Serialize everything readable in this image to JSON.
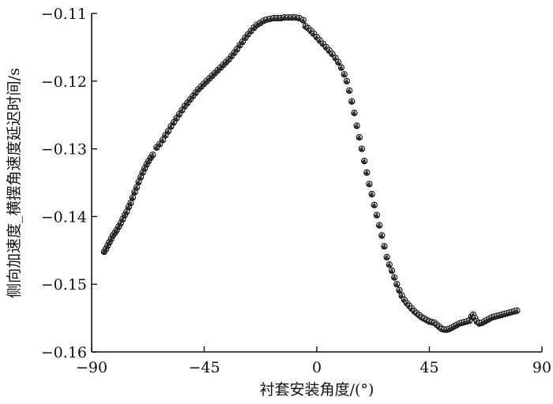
{
  "chart_data": {
    "type": "scatter",
    "xlabel": "衬套安装角度/(°)",
    "ylabel": "侧向加速度_横摆角速度延迟时间/s",
    "xlim": [
      -90,
      90
    ],
    "ylim": [
      -0.16,
      -0.11
    ],
    "xticks": [
      -90,
      -45,
      0,
      45,
      90
    ],
    "yticks": [
      -0.16,
      -0.15,
      -0.14,
      -0.13,
      -0.12,
      -0.11
    ],
    "xtick_labels": [
      "−90",
      "−45",
      "0",
      "45",
      "90"
    ],
    "ytick_labels": [
      "−0.16",
      "−0.15",
      "−0.14",
      "−0.13",
      "−0.12",
      "−0.11"
    ],
    "grid": false,
    "series": [
      {
        "marker_color": "#111111",
        "points": [
          [
            -85.0,
            -0.1452
          ],
          [
            -84.3,
            -0.1448
          ],
          [
            -83.6,
            -0.1443
          ],
          [
            -82.9,
            -0.1438
          ],
          [
            -82.2,
            -0.1433
          ],
          [
            -81.5,
            -0.1428
          ],
          [
            -80.7,
            -0.1424
          ],
          [
            -80.0,
            -0.142
          ],
          [
            -79.2,
            -0.1415
          ],
          [
            -78.4,
            -0.141
          ],
          [
            -77.6,
            -0.1404
          ],
          [
            -76.8,
            -0.1398
          ],
          [
            -76.0,
            -0.1393
          ],
          [
            -75.2,
            -0.1386
          ],
          [
            -74.4,
            -0.138
          ],
          [
            -73.6,
            -0.1372
          ],
          [
            -72.8,
            -0.1364
          ],
          [
            -72.0,
            -0.1357
          ],
          [
            -71.2,
            -0.1349
          ],
          [
            -70.4,
            -0.1342
          ],
          [
            -69.6,
            -0.1335
          ],
          [
            -68.8,
            -0.1329
          ],
          [
            -68.0,
            -0.1323
          ],
          [
            -67.2,
            -0.1318
          ],
          [
            -66.4,
            -0.1313
          ],
          [
            -65.6,
            -0.1309
          ],
          [
            -64.0,
            -0.1298
          ],
          [
            -62.8,
            -0.1293
          ],
          [
            -61.6,
            -0.1287
          ],
          [
            -60.5,
            -0.128
          ],
          [
            -59.4,
            -0.1274
          ],
          [
            -58.3,
            -0.1267
          ],
          [
            -57.2,
            -0.1261
          ],
          [
            -56.1,
            -0.1255
          ],
          [
            -55.0,
            -0.1249
          ],
          [
            -53.9,
            -0.1243
          ],
          [
            -52.8,
            -0.1237
          ],
          [
            -51.7,
            -0.1232
          ],
          [
            -50.6,
            -0.1227
          ],
          [
            -49.5,
            -0.1222
          ],
          [
            -48.4,
            -0.1217
          ],
          [
            -47.3,
            -0.1212
          ],
          [
            -46.2,
            -0.1208
          ],
          [
            -45.1,
            -0.1204
          ],
          [
            -44.0,
            -0.12
          ],
          [
            -42.9,
            -0.1196
          ],
          [
            -41.8,
            -0.1192
          ],
          [
            -40.7,
            -0.1188
          ],
          [
            -39.6,
            -0.1184
          ],
          [
            -38.5,
            -0.118
          ],
          [
            -37.4,
            -0.1176
          ],
          [
            -36.3,
            -0.1172
          ],
          [
            -35.2,
            -0.1168
          ],
          [
            -34.1,
            -0.1163
          ],
          [
            -33.0,
            -0.1158
          ],
          [
            -31.9,
            -0.1153
          ],
          [
            -30.8,
            -0.1147
          ],
          [
            -29.7,
            -0.1142
          ],
          [
            -28.6,
            -0.1136
          ],
          [
            -27.5,
            -0.1131
          ],
          [
            -26.3,
            -0.1126
          ],
          [
            -25.1,
            -0.1121
          ],
          [
            -23.9,
            -0.1117
          ],
          [
            -22.6,
            -0.1114
          ],
          [
            -21.3,
            -0.1111
          ],
          [
            -20.0,
            -0.1109
          ],
          [
            -18.6,
            -0.1108
          ],
          [
            -17.2,
            -0.1107
          ],
          [
            -15.8,
            -0.1107
          ],
          [
            -14.4,
            -0.1107
          ],
          [
            -13.0,
            -0.1106
          ],
          [
            -11.5,
            -0.1106
          ],
          [
            -10.0,
            -0.1106
          ],
          [
            -8.5,
            -0.1106
          ],
          [
            -7.0,
            -0.1107
          ],
          [
            -5.4,
            -0.111
          ],
          [
            -4.5,
            -0.1119
          ],
          [
            -3.4,
            -0.1122
          ],
          [
            -2.3,
            -0.1126
          ],
          [
            -1.2,
            -0.113
          ],
          [
            0.0,
            -0.1135
          ],
          [
            1.2,
            -0.114
          ],
          [
            2.5,
            -0.1145
          ],
          [
            3.8,
            -0.115
          ],
          [
            5.0,
            -0.1155
          ],
          [
            6.2,
            -0.116
          ],
          [
            7.5,
            -0.1166
          ],
          [
            8.6,
            -0.1172
          ],
          [
            9.8,
            -0.118
          ],
          [
            11.0,
            -0.119
          ],
          [
            12.0,
            -0.12
          ],
          [
            13.0,
            -0.1214
          ],
          [
            14.0,
            -0.123
          ],
          [
            15.0,
            -0.1247
          ],
          [
            16.0,
            -0.1266
          ],
          [
            17.0,
            -0.1283
          ],
          [
            18.0,
            -0.13
          ],
          [
            19.0,
            -0.1318
          ],
          [
            20.0,
            -0.1335
          ],
          [
            21.0,
            -0.1352
          ],
          [
            22.0,
            -0.1367
          ],
          [
            23.0,
            -0.1383
          ],
          [
            24.0,
            -0.1398
          ],
          [
            25.0,
            -0.1413
          ],
          [
            26.0,
            -0.1428
          ],
          [
            27.0,
            -0.1444
          ],
          [
            28.0,
            -0.146
          ],
          [
            29.0,
            -0.1471
          ],
          [
            30.0,
            -0.148
          ],
          [
            31.0,
            -0.149
          ],
          [
            32.0,
            -0.15
          ],
          [
            33.0,
            -0.1509
          ],
          [
            34.0,
            -0.1517
          ],
          [
            35.0,
            -0.1523
          ],
          [
            36.0,
            -0.1528
          ],
          [
            37.0,
            -0.1532
          ],
          [
            38.0,
            -0.1536
          ],
          [
            39.0,
            -0.154
          ],
          [
            40.0,
            -0.1543
          ],
          [
            41.0,
            -0.1546
          ],
          [
            42.0,
            -0.1549
          ],
          [
            43.0,
            -0.1551
          ],
          [
            44.0,
            -0.1553
          ],
          [
            45.0,
            -0.1555
          ],
          [
            46.0,
            -0.1556
          ],
          [
            47.0,
            -0.1557
          ],
          [
            48.0,
            -0.156
          ],
          [
            49.0,
            -0.1563
          ],
          [
            50.0,
            -0.1566
          ],
          [
            51.0,
            -0.1567
          ],
          [
            52.0,
            -0.1567
          ],
          [
            53.0,
            -0.1566
          ],
          [
            54.0,
            -0.1564
          ],
          [
            55.0,
            -0.1562
          ],
          [
            56.0,
            -0.156
          ],
          [
            57.0,
            -0.1558
          ],
          [
            58.0,
            -0.1557
          ],
          [
            59.0,
            -0.1556
          ],
          [
            60.0,
            -0.1555
          ],
          [
            61.0,
            -0.1554
          ],
          [
            61.8,
            -0.1548
          ],
          [
            62.5,
            -0.1545
          ],
          [
            63.2,
            -0.155
          ],
          [
            64.0,
            -0.1555
          ],
          [
            65.0,
            -0.1558
          ],
          [
            66.0,
            -0.1557
          ],
          [
            67.0,
            -0.1555
          ],
          [
            68.0,
            -0.1553
          ],
          [
            69.0,
            -0.1551
          ],
          [
            70.0,
            -0.1549
          ],
          [
            71.0,
            -0.1548
          ],
          [
            72.0,
            -0.1547
          ],
          [
            73.0,
            -0.1546
          ],
          [
            74.0,
            -0.1545
          ],
          [
            75.0,
            -0.1544
          ],
          [
            76.0,
            -0.1543
          ],
          [
            77.0,
            -0.1542
          ],
          [
            78.0,
            -0.1541
          ],
          [
            79.0,
            -0.154
          ],
          [
            80.0,
            -0.1539
          ]
        ]
      }
    ]
  }
}
